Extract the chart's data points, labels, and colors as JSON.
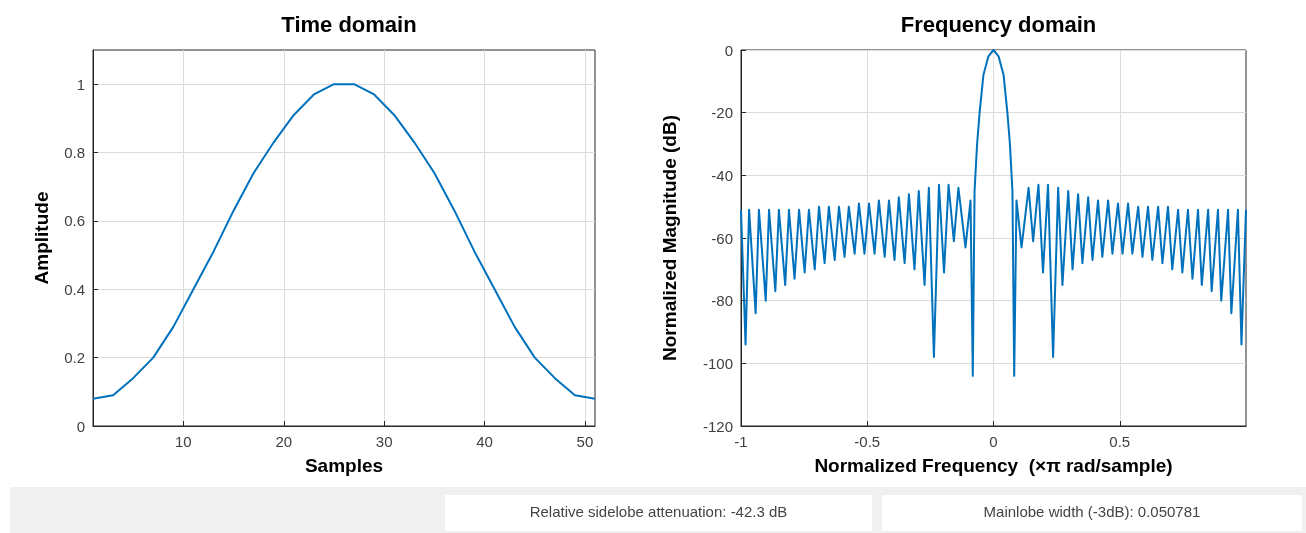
{
  "chart_data": [
    {
      "type": "line",
      "title": "Time domain",
      "xlabel": "Samples",
      "ylabel": "Amplitude",
      "color": "#0072bd",
      "grid": true,
      "x": [
        1,
        3,
        5,
        7,
        9,
        11,
        13,
        15,
        17,
        19,
        21,
        23,
        25,
        26,
        27,
        29,
        31,
        33,
        35,
        37,
        39,
        41,
        43,
        45,
        47,
        49,
        51
      ],
      "values": [
        0.08,
        0.09,
        0.14,
        0.2,
        0.29,
        0.4,
        0.51,
        0.63,
        0.74,
        0.83,
        0.91,
        0.97,
        1.0,
        1.0,
        1.0,
        0.97,
        0.91,
        0.83,
        0.74,
        0.63,
        0.51,
        0.4,
        0.29,
        0.2,
        0.14,
        0.09,
        0.08
      ],
      "xlim": [
        1,
        51
      ],
      "xticks": [
        10,
        20,
        30,
        40,
        50
      ],
      "ylim": [
        0,
        1.1
      ],
      "yticks": [
        0,
        0.2,
        0.4,
        0.6,
        0.8,
        1
      ]
    },
    {
      "type": "line",
      "title": "Frequency domain",
      "xlabel": "Normalized Frequency  (×π rad/sample)",
      "ylabel": "Normalized Magnitude (dB)",
      "color": "#0072bd",
      "grid": true,
      "x": [
        -1,
        -0.982,
        -0.968,
        -0.942,
        -0.929,
        -0.902,
        -0.889,
        -0.864,
        -0.85,
        -0.825,
        -0.81,
        -0.788,
        -0.77,
        -0.748,
        -0.731,
        -0.708,
        -0.691,
        -0.669,
        -0.652,
        -0.629,
        -0.612,
        -0.59,
        -0.573,
        -0.55,
        -0.533,
        -0.511,
        -0.493,
        -0.471,
        -0.454,
        -0.431,
        -0.414,
        -0.392,
        -0.375,
        -0.352,
        -0.335,
        -0.313,
        -0.296,
        -0.273,
        -0.256,
        -0.236,
        -0.216,
        -0.196,
        -0.178,
        -0.157,
        -0.139,
        -0.111,
        -0.091,
        -0.082,
        -0.075,
        -0.065,
        -0.055,
        -0.04,
        -0.02,
        0,
        0.02,
        0.04,
        0.055,
        0.065,
        0.075,
        0.082,
        0.091,
        0.111,
        0.139,
        0.157,
        0.178,
        0.196,
        0.216,
        0.236,
        0.256,
        0.273,
        0.296,
        0.313,
        0.335,
        0.352,
        0.375,
        0.392,
        0.414,
        0.431,
        0.454,
        0.471,
        0.493,
        0.511,
        0.533,
        0.55,
        0.573,
        0.59,
        0.612,
        0.629,
        0.652,
        0.669,
        0.691,
        0.708,
        0.731,
        0.748,
        0.77,
        0.788,
        0.81,
        0.825,
        0.85,
        0.864,
        0.889,
        0.902,
        0.929,
        0.942,
        0.968,
        0.982,
        1
      ],
      "values": [
        -51,
        -94,
        -51,
        -84,
        -51,
        -80,
        -51,
        -77,
        -51,
        -75,
        -51,
        -73,
        -51,
        -71,
        -51,
        -70,
        -50,
        -68,
        -50,
        -67,
        -50,
        -66,
        -50,
        -65,
        -49,
        -65,
        -49,
        -65,
        -48,
        -66,
        -48,
        -67,
        -47,
        -68,
        -46,
        -70,
        -45,
        -75,
        -44,
        -98,
        -43,
        -71,
        -43,
        -61,
        -44,
        -63,
        -48,
        -104,
        -45,
        -30,
        -20,
        -8,
        -2,
        0,
        -2,
        -8,
        -20,
        -30,
        -45,
        -104,
        -48,
        -63,
        -44,
        -61,
        -43,
        -71,
        -43,
        -98,
        -44,
        -75,
        -45,
        -70,
        -46,
        -68,
        -47,
        -67,
        -48,
        -66,
        -48,
        -65,
        -49,
        -65,
        -49,
        -65,
        -50,
        -66,
        -50,
        -67,
        -50,
        -68,
        -50,
        -70,
        -51,
        -71,
        -51,
        -73,
        -51,
        -75,
        -51,
        -77,
        -51,
        -80,
        -51,
        -84,
        -51,
        -94,
        -51
      ],
      "xlim": [
        -1,
        1
      ],
      "xticks": [
        -1,
        -0.5,
        0,
        0.5
      ],
      "ylim": [
        -120,
        0
      ],
      "yticks": [
        -120,
        -100,
        -80,
        -60,
        -40,
        -20,
        0
      ],
      "annotations": [
        "Relative sidelobe attenuation: -42.3 dB",
        "Mainlobe width (-3dB): 0.050781"
      ]
    }
  ]
}
